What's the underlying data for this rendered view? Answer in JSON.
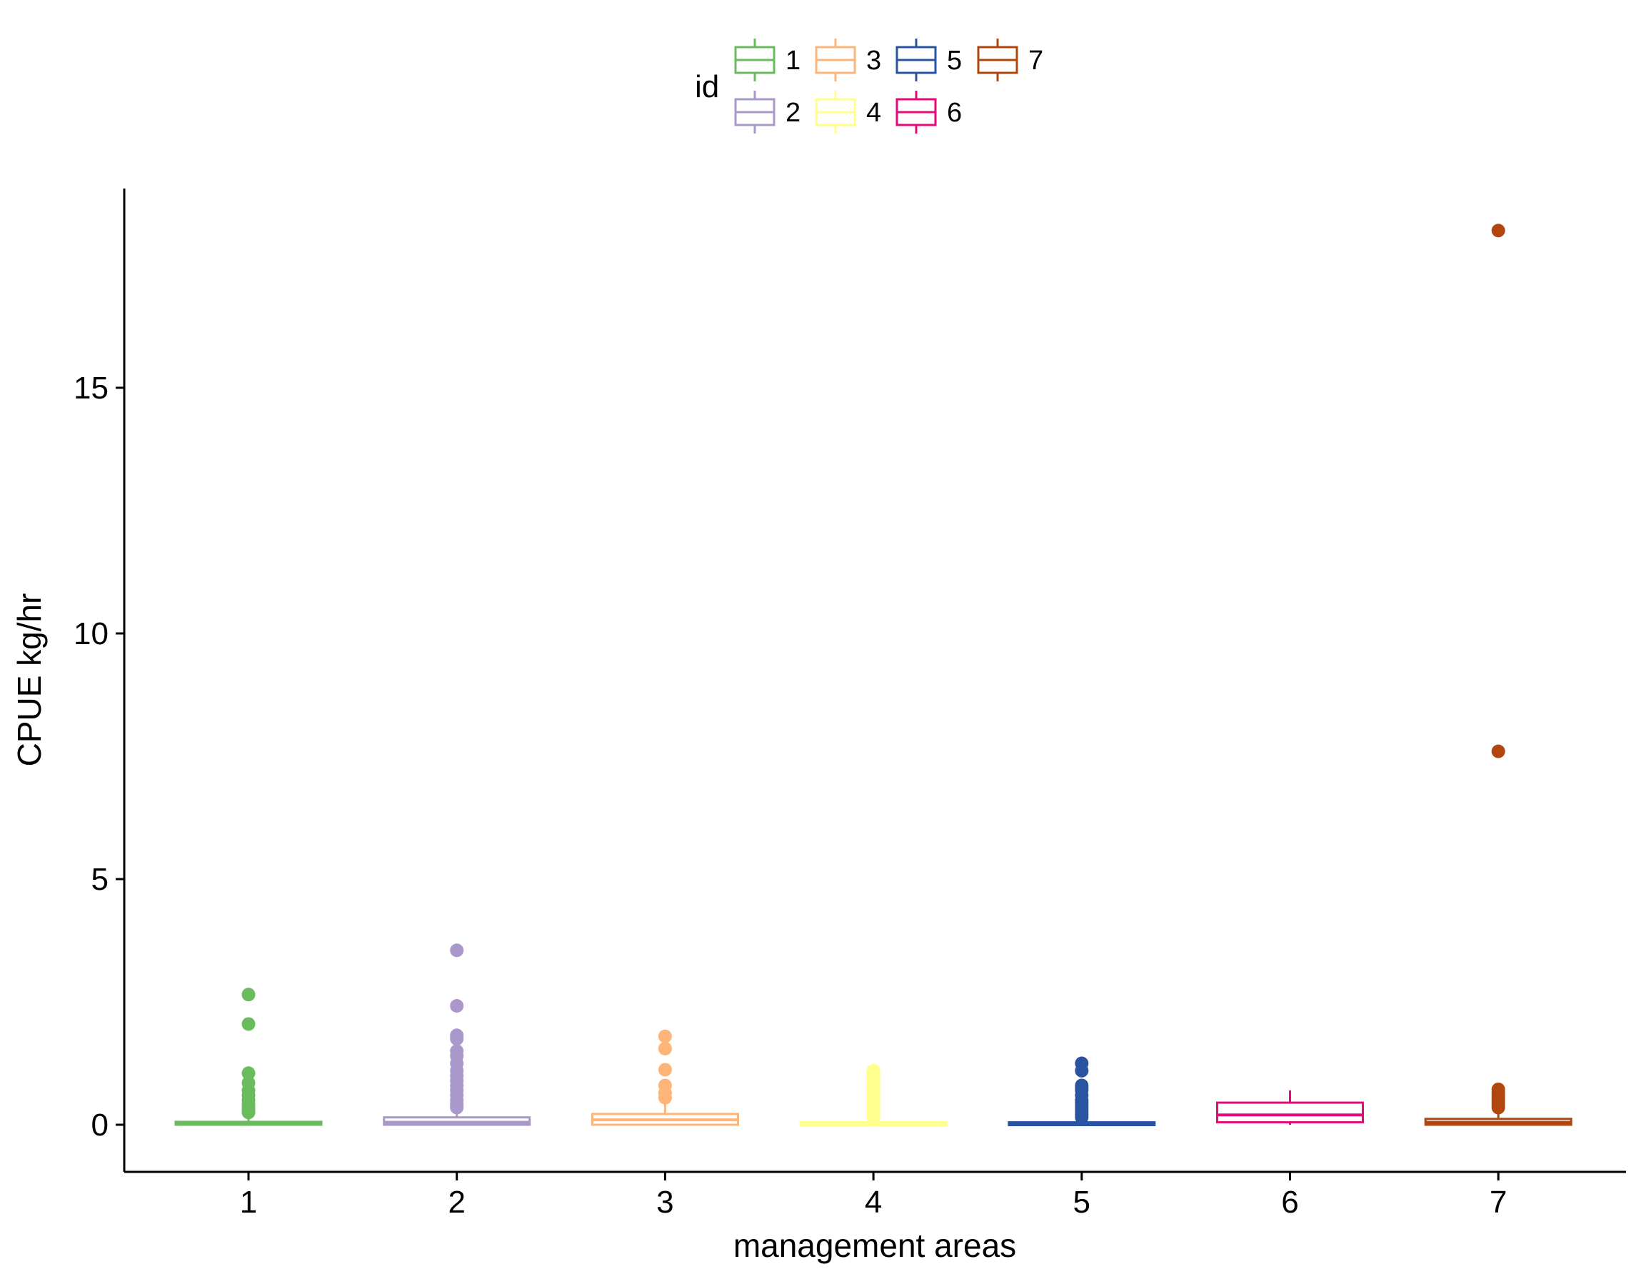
{
  "chart_data": {
    "type": "boxplot",
    "xlabel": "management areas",
    "ylabel": "CPUE kg/hr",
    "ylim": [
      -0.9,
      19.2
    ],
    "yticks": [
      0,
      5,
      10,
      15
    ],
    "legend": {
      "title": "id",
      "placement": "top"
    },
    "categories": [
      "1",
      "2",
      "3",
      "4",
      "5",
      "6",
      "7"
    ],
    "series": [
      {
        "name": "1",
        "color": "#6ABB5E",
        "q1": 0.0,
        "median": 0.03,
        "q3": 0.06,
        "whisker_low": 0.0,
        "whisker_high": 0.15,
        "outliers": [
          2.65,
          2.05,
          1.05,
          0.85,
          0.7,
          0.6,
          0.5,
          0.42,
          0.35,
          0.3,
          0.25
        ]
      },
      {
        "name": "2",
        "color": "#A998C9",
        "q1": 0.0,
        "median": 0.05,
        "q3": 0.15,
        "whisker_low": 0.0,
        "whisker_high": 0.3,
        "outliers": [
          3.55,
          2.42,
          1.82,
          1.75,
          1.5,
          1.4,
          1.25,
          1.1,
          1.0,
          0.9,
          0.8,
          0.7,
          0.6,
          0.5,
          0.42,
          0.35
        ]
      },
      {
        "name": "3",
        "color": "#FDB579",
        "q1": 0.0,
        "median": 0.1,
        "q3": 0.22,
        "whisker_low": 0.0,
        "whisker_high": 0.45,
        "outliers": [
          1.8,
          1.55,
          1.12,
          0.8,
          0.65,
          0.55
        ]
      },
      {
        "name": "4",
        "color": "#FFFF8E",
        "q1": 0.0,
        "median": 0.02,
        "q3": 0.05,
        "whisker_low": 0.0,
        "whisker_high": 0.1,
        "outliers": [
          1.1,
          1.05,
          1.0,
          0.95,
          0.9,
          0.85,
          0.8,
          0.75,
          0.7,
          0.65,
          0.6,
          0.55,
          0.5,
          0.45,
          0.4,
          0.35,
          0.3,
          0.25,
          0.2,
          0.15
        ]
      },
      {
        "name": "5",
        "color": "#2A54A0",
        "q1": 0.0,
        "median": 0.02,
        "q3": 0.05,
        "whisker_low": 0.0,
        "whisker_high": 0.1,
        "outliers": [
          1.25,
          1.1,
          0.8,
          0.75,
          0.7,
          0.6,
          0.5,
          0.45,
          0.4,
          0.35,
          0.3,
          0.25,
          0.2,
          0.15
        ]
      },
      {
        "name": "6",
        "color": "#E5097A",
        "q1": 0.05,
        "median": 0.2,
        "q3": 0.45,
        "whisker_low": 0.0,
        "whisker_high": 0.7,
        "outliers": []
      },
      {
        "name": "7",
        "color": "#B1460F",
        "q1": 0.0,
        "median": 0.05,
        "q3": 0.12,
        "whisker_low": 0.0,
        "whisker_high": 0.25,
        "outliers": [
          18.2,
          7.6,
          0.72,
          0.65,
          0.6,
          0.55,
          0.5,
          0.45,
          0.4,
          0.35
        ]
      }
    ]
  }
}
